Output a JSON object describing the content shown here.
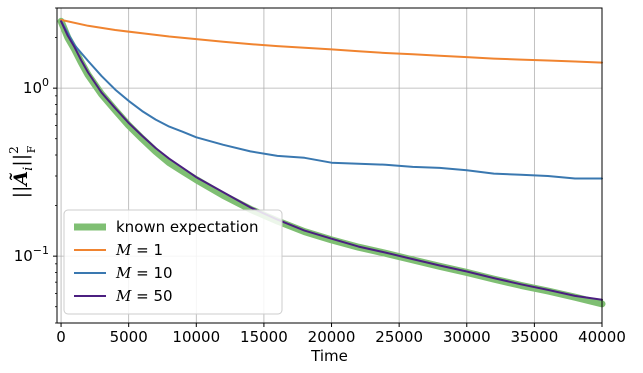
{
  "chart_data": {
    "type": "line",
    "title": "",
    "xlabel": "Time",
    "ylabel": "‖Ã_i‖²_F",
    "yscale": "log",
    "xlim": [
      -300,
      40000
    ],
    "ylim": [
      0.04,
      3.0
    ],
    "grid": true,
    "legend_position": "lower-left",
    "x_ticks": [
      0,
      5000,
      10000,
      15000,
      20000,
      25000,
      30000,
      35000,
      40000
    ],
    "y_ticks": [
      {
        "value": 0.1,
        "base": "10",
        "exp": "−1"
      },
      {
        "value": 1.0,
        "base": "10",
        "exp": "0"
      }
    ],
    "series": [
      {
        "name": "known expectation",
        "color": "#7fbf73",
        "style": "thick",
        "x": [
          0,
          500,
          1000,
          1500,
          2000,
          3000,
          4000,
          5000,
          6000,
          7000,
          8000,
          9000,
          10000,
          12000,
          14000,
          16000,
          18000,
          20000,
          22000,
          24000,
          26000,
          28000,
          30000,
          32000,
          34000,
          36000,
          38000,
          40000
        ],
        "y": [
          2.5,
          2.0,
          1.7,
          1.42,
          1.2,
          0.92,
          0.74,
          0.6,
          0.5,
          0.42,
          0.36,
          0.32,
          0.285,
          0.23,
          0.19,
          0.162,
          0.14,
          0.125,
          0.113,
          0.104,
          0.095,
          0.087,
          0.08,
          0.073,
          0.067,
          0.062,
          0.057,
          0.052
        ]
      },
      {
        "name": "M = 1",
        "color": "#f08430",
        "style": "thin",
        "x": [
          0,
          2000,
          4000,
          6000,
          8000,
          10000,
          12000,
          14000,
          16000,
          18000,
          20000,
          22000,
          24000,
          26000,
          28000,
          30000,
          32000,
          34000,
          36000,
          38000,
          40000
        ],
        "y": [
          2.55,
          2.35,
          2.22,
          2.12,
          2.03,
          1.96,
          1.89,
          1.83,
          1.78,
          1.74,
          1.7,
          1.66,
          1.62,
          1.59,
          1.56,
          1.53,
          1.5,
          1.48,
          1.46,
          1.44,
          1.42
        ]
      },
      {
        "name": "M = 10",
        "color": "#3a78b0",
        "style": "thin",
        "x": [
          0,
          1000,
          2000,
          3000,
          4000,
          5000,
          6000,
          7000,
          8000,
          9000,
          10000,
          12000,
          14000,
          16000,
          18000,
          20000,
          22000,
          24000,
          26000,
          28000,
          30000,
          32000,
          34000,
          36000,
          38000,
          40000
        ],
        "y": [
          2.5,
          1.8,
          1.45,
          1.18,
          0.98,
          0.84,
          0.73,
          0.65,
          0.59,
          0.55,
          0.51,
          0.46,
          0.42,
          0.395,
          0.385,
          0.36,
          0.355,
          0.35,
          0.34,
          0.335,
          0.325,
          0.31,
          0.305,
          0.3,
          0.29,
          0.29
        ]
      },
      {
        "name": "M = 50",
        "color": "#4b1f80",
        "style": "thin",
        "x": [
          0,
          500,
          1000,
          1500,
          2000,
          3000,
          4000,
          5000,
          6000,
          7000,
          8000,
          9000,
          10000,
          12000,
          14000,
          16000,
          18000,
          20000,
          22000,
          24000,
          26000,
          28000,
          30000,
          32000,
          34000,
          36000,
          38000,
          40000
        ],
        "y": [
          2.5,
          2.05,
          1.75,
          1.46,
          1.24,
          0.94,
          0.76,
          0.62,
          0.52,
          0.44,
          0.38,
          0.335,
          0.295,
          0.24,
          0.195,
          0.165,
          0.142,
          0.127,
          0.114,
          0.105,
          0.096,
          0.088,
          0.081,
          0.074,
          0.068,
          0.063,
          0.058,
          0.055
        ]
      }
    ]
  }
}
